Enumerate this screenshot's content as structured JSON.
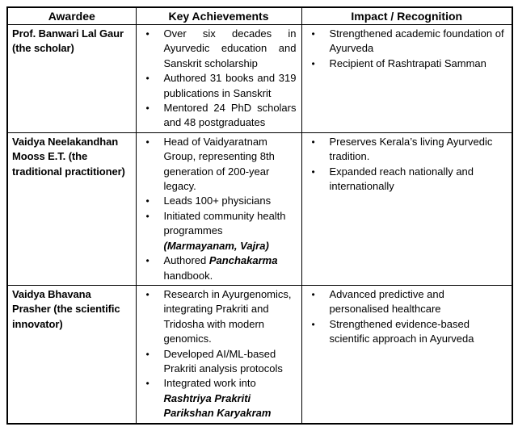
{
  "page": {
    "background_color": "#ffffff",
    "border_color": "#000000",
    "text_color": "#000000"
  },
  "table": {
    "headers": [
      "Awardee",
      "Key Achievements",
      "Impact / Recognition"
    ],
    "bullet_glyph": "•",
    "rows": [
      {
        "awardee": "Prof. Banwari Lal Gaur (the scholar)",
        "achievements": [
          {
            "justify": true,
            "segments": [
              {
                "text": "Over six decades in Ayurvedic education and Sanskrit scholarship",
                "style": "normal"
              }
            ]
          },
          {
            "justify": true,
            "segments": [
              {
                "text": "Authored 31 books and 319 publications in Sanskrit",
                "style": "normal"
              }
            ]
          },
          {
            "justify": true,
            "segments": [
              {
                "text": "Mentored 24 PhD scholars and 48 postgraduates",
                "style": "normal"
              }
            ]
          }
        ],
        "impact": [
          {
            "justify": false,
            "segments": [
              {
                "text": "Strengthened academic foundation of Ayurveda",
                "style": "normal"
              }
            ]
          },
          {
            "justify": false,
            "segments": [
              {
                "text": "Recipient of Rashtrapati Samman",
                "style": "normal"
              }
            ]
          }
        ]
      },
      {
        "awardee": "Vaidya Neelakandhan Mooss E.T. (the traditional practitioner)",
        "achievements": [
          {
            "justify": false,
            "segments": [
              {
                "text": "Head of Vaidyaratnam Group, representing 8th generation of 200-year legacy.",
                "style": "normal"
              }
            ]
          },
          {
            "justify": false,
            "segments": [
              {
                "text": "Leads 100+ physicians",
                "style": "normal"
              }
            ]
          },
          {
            "justify": false,
            "segments": [
              {
                "text": "Initiated community health programmes ",
                "style": "normal"
              },
              {
                "text": "(Marmayanam, Vajra)",
                "style": "bold-italic"
              }
            ]
          },
          {
            "justify": false,
            "segments": [
              {
                "text": "Authored ",
                "style": "normal"
              },
              {
                "text": "Panchakarma",
                "style": "bold-italic"
              },
              {
                "text": " handbook.",
                "style": "normal"
              }
            ]
          }
        ],
        "impact": [
          {
            "justify": false,
            "segments": [
              {
                "text": "Preserves Kerala’s living Ayurvedic tradition.",
                "style": "normal"
              }
            ]
          },
          {
            "justify": false,
            "segments": [
              {
                "text": "Expanded reach nationally and internationally",
                "style": "normal"
              }
            ]
          }
        ]
      },
      {
        "awardee": "Vaidya Bhavana Prasher (the scientific innovator)",
        "achievements": [
          {
            "justify": false,
            "segments": [
              {
                "text": "Research in Ayurgenomics, integrating Prakriti and Tridosha with modern genomics.",
                "style": "normal"
              }
            ]
          },
          {
            "justify": false,
            "segments": [
              {
                "text": "Developed AI/ML-based Prakriti analysis protocols",
                "style": "normal"
              }
            ]
          },
          {
            "justify": false,
            "segments": [
              {
                "text": "Integrated work into ",
                "style": "normal"
              },
              {
                "text": "Rashtriya Prakriti Parikshan Karyakram",
                "style": "bold-italic"
              }
            ]
          }
        ],
        "impact": [
          {
            "justify": false,
            "segments": [
              {
                "text": "Advanced predictive and personalised healthcare",
                "style": "normal"
              }
            ]
          },
          {
            "justify": false,
            "segments": [
              {
                "text": "Strengthened evidence-based scientific approach in Ayurveda",
                "style": "normal"
              }
            ]
          }
        ]
      }
    ]
  }
}
